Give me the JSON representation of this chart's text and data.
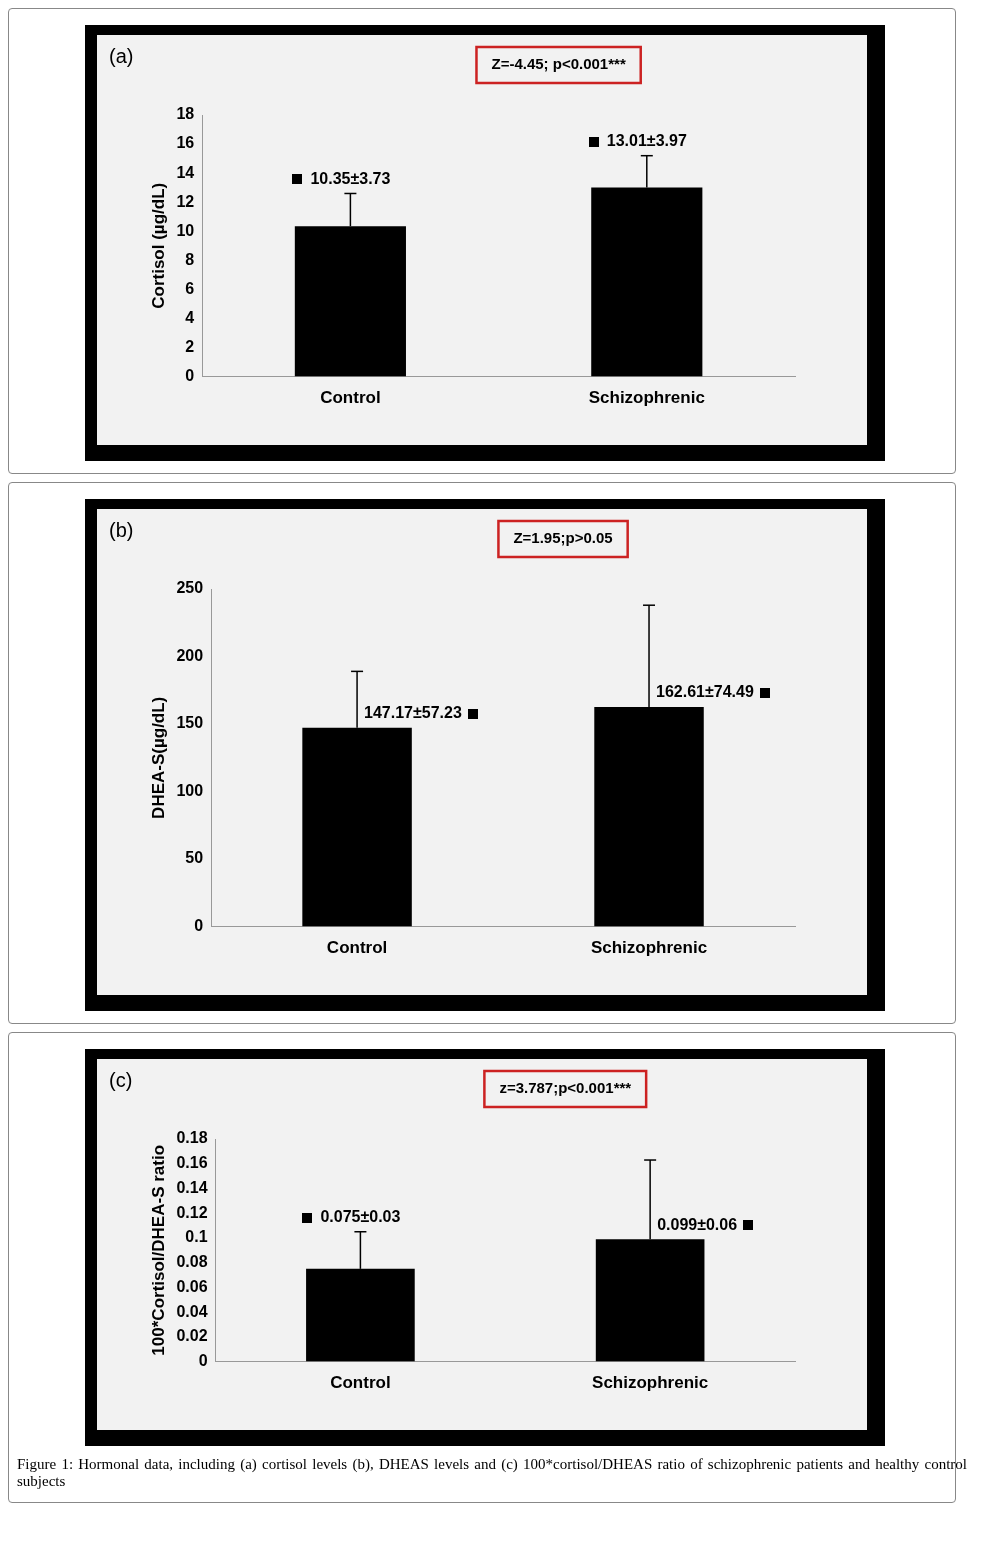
{
  "chart_data": [
    {
      "type": "bar",
      "title": "(a)",
      "ylabel": "Cortisol (µg/dL)",
      "categories": [
        "Control",
        "Schizophrenic"
      ],
      "values": [
        10.35,
        13.01
      ],
      "color": "#000000",
      "errors": [
        [
          10.35,
          12.6
        ],
        [
          13.01,
          15.2
        ]
      ],
      "value_labels": [
        "10.35±3.73",
        "13.01±3.97"
      ],
      "ylim": [
        0,
        18
      ],
      "yticks": [
        0,
        2,
        4,
        6,
        8,
        10,
        12,
        14,
        16,
        18
      ],
      "grid": false,
      "legend": false,
      "annotations": [
        "Z=-4.45; p<0.001***"
      ]
    },
    {
      "type": "bar",
      "title": "(b)",
      "ylabel": "DHEA-S(µg/dL)",
      "categories": [
        "Control",
        "Schizophrenic"
      ],
      "values": [
        147.17,
        162.61
      ],
      "color": "#000000",
      "errors": [
        [
          147.17,
          189
        ],
        [
          162.61,
          238
        ]
      ],
      "value_labels": [
        "147.17±57.23",
        "162.61±74.49"
      ],
      "ylim": [
        0,
        250
      ],
      "yticks": [
        0,
        50,
        100,
        150,
        200,
        250
      ],
      "grid": false,
      "legend": false,
      "annotations": [
        "Z=1.95;p>0.05"
      ]
    },
    {
      "type": "bar",
      "title": "(c)",
      "ylabel": "100*Cortisol/DHEA-S ratio",
      "categories": [
        "Control",
        "Schizophrenic"
      ],
      "values": [
        0.075,
        0.099
      ],
      "color": "#000000",
      "errors": [
        [
          0.075,
          0.105
        ],
        [
          0.099,
          0.163
        ]
      ],
      "value_labels": [
        "0.075±0.03",
        "0.099±0.06"
      ],
      "ylim": [
        0,
        0.18
      ],
      "yticks": [
        0,
        0.02,
        0.04,
        0.06,
        0.08,
        0.1,
        0.12,
        0.14,
        0.16,
        0.18
      ],
      "grid": false,
      "legend": false,
      "annotations": [
        "z=3.787;p<0.001***",
        "Figure 1: Hormonal data, including (a) cortisol levels (b), DHEAS levels and (c) 100*cortisol/DHEAS ratio of schizophrenic patients and healthy control subjects"
      ]
    }
  ]
}
